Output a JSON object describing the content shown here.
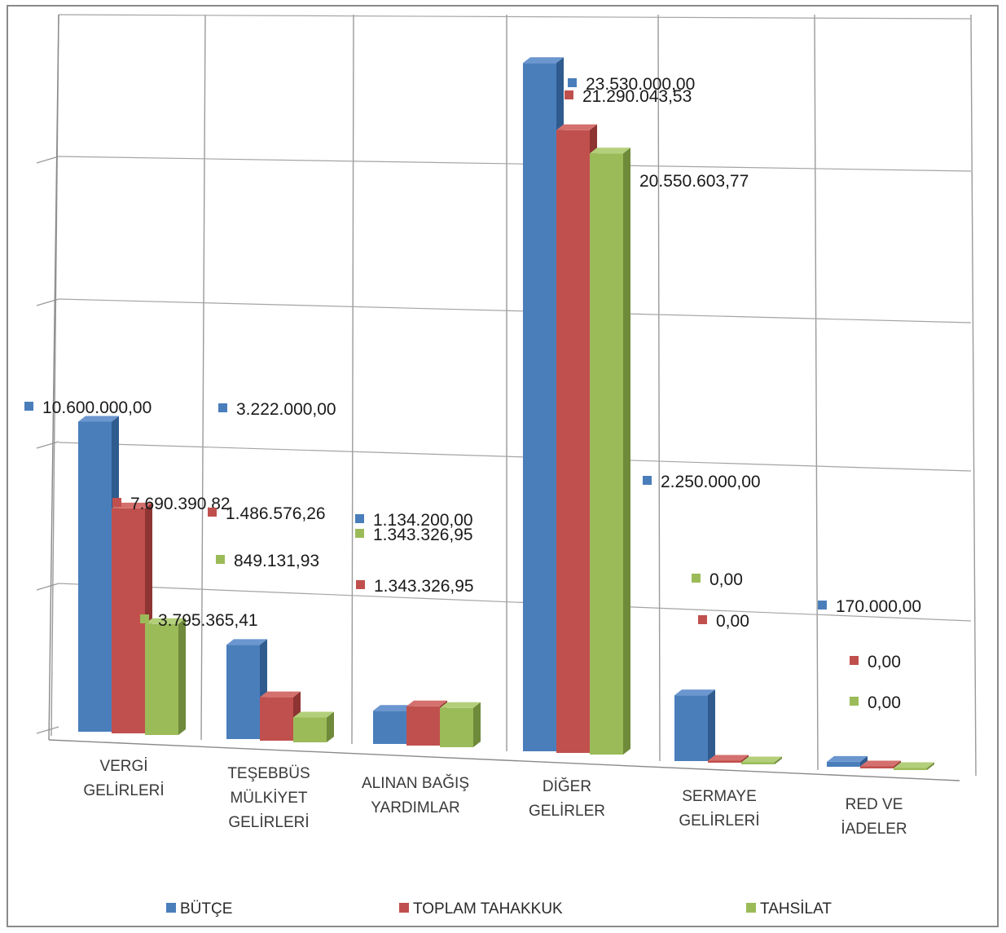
{
  "chart_data": {
    "type": "bar",
    "categories": [
      [
        "VERGİ",
        "GELİRLERİ"
      ],
      [
        "TEŞEBBÜS",
        "MÜLKİYET",
        "GELİRLERİ"
      ],
      [
        "ALINAN BAĞIŞ",
        "YARDIMLAR"
      ],
      [
        "DİĞER",
        "GELİRLER"
      ],
      [
        "SERMAYE",
        "GELİRLERİ"
      ],
      [
        "RED VE",
        "İADELER"
      ]
    ],
    "series": [
      {
        "name": "BÜTÇE",
        "color": "#4a7ebb",
        "values": [
          10600000.0,
          3222000.0,
          1134200.0,
          23530000.0,
          2250000.0,
          170000.0
        ],
        "labels": [
          "10.600.000,00",
          "3.222.000,00",
          "1.134.200,00",
          "23.530.000,00",
          "2.250.000,00",
          "170.000,00"
        ]
      },
      {
        "name": "TOPLAM TAHAKKUK",
        "color": "#c0504d",
        "values": [
          7690390.82,
          1486576.26,
          1343326.95,
          21290043.53,
          0.0,
          0.0
        ],
        "labels": [
          "7.690.390,82",
          "1.486.576,26",
          "1.343.326,95",
          "21.290.043,53",
          "0,00",
          "0,00"
        ]
      },
      {
        "name": "TAHSİLAT",
        "color": "#9bbb59",
        "values": [
          3795365.41,
          849131.93,
          1343326.95,
          20550603.77,
          0.0,
          0.0
        ],
        "labels": [
          "3.795.365,41",
          "849.131,93",
          "1.343.326,95",
          "20.550.603,77",
          "0,00",
          "0,00"
        ]
      }
    ],
    "legend_position": "bottom",
    "grid": true,
    "view": "3d-perspective"
  }
}
